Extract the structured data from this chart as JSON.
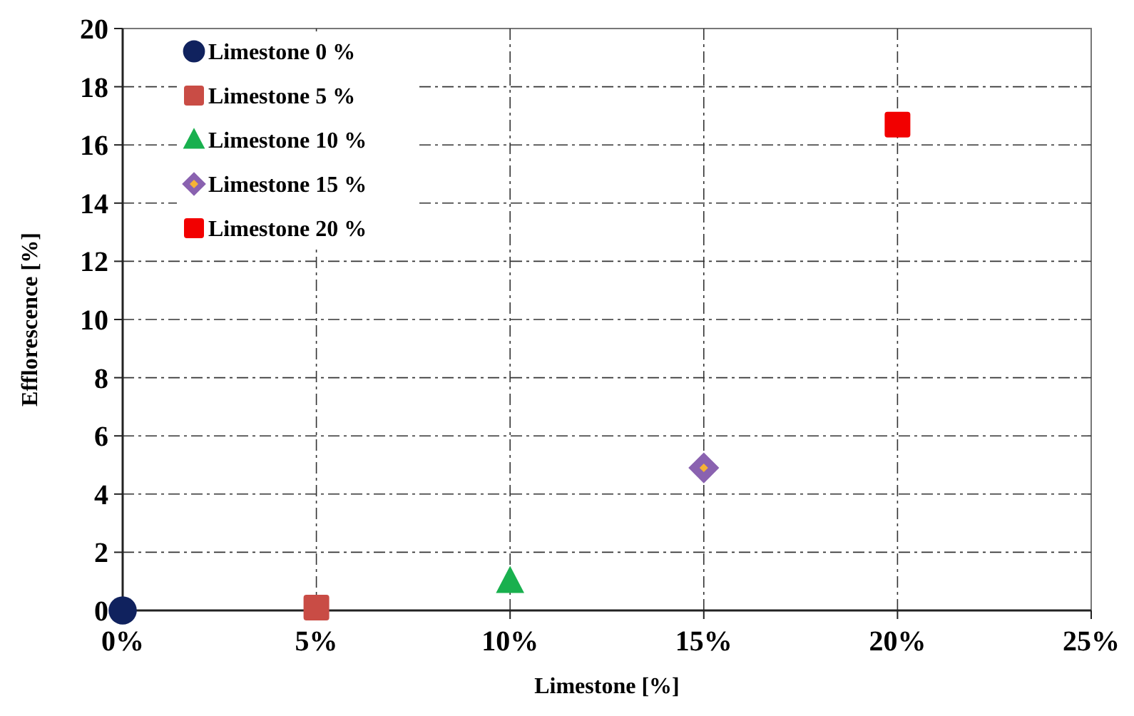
{
  "chart_data": {
    "type": "scatter",
    "xlabel": "Limestone [%]",
    "ylabel": "Efflorescence [%]",
    "xlim": [
      0,
      25
    ],
    "ylim": [
      0,
      20
    ],
    "xticks": [
      {
        "value": 0,
        "label": "0%"
      },
      {
        "value": 5,
        "label": "5%"
      },
      {
        "value": 10,
        "label": "10%"
      },
      {
        "value": 15,
        "label": "15%"
      },
      {
        "value": 20,
        "label": "20%"
      },
      {
        "value": 25,
        "label": "25%"
      }
    ],
    "yticks": [
      0,
      2,
      4,
      6,
      8,
      10,
      12,
      14,
      16,
      18,
      20
    ],
    "grid": true,
    "legend": "top left",
    "line_style": "dashed",
    "series": [
      {
        "name": "Limestone 0 %",
        "color": "#10225e",
        "marker": "circle",
        "x": [
          0
        ],
        "values": [
          0
        ]
      },
      {
        "name": "Limestone 5 %",
        "color": "#c94c45",
        "marker": "square",
        "x": [
          5
        ],
        "values": [
          0.1
        ]
      },
      {
        "name": "Limestone 10 %",
        "color": "#19b04e",
        "marker": "triangle",
        "x": [
          10
        ],
        "values": [
          1.0
        ]
      },
      {
        "name": "Limestone 15 %",
        "color": "#8a62b0",
        "marker": "diamond",
        "x": [
          15
        ],
        "values": [
          4.9
        ]
      },
      {
        "name": "Limestone 20 %",
        "color": "#f20000",
        "marker": "square",
        "x": [
          20
        ],
        "values": [
          16.7
        ]
      }
    ]
  }
}
